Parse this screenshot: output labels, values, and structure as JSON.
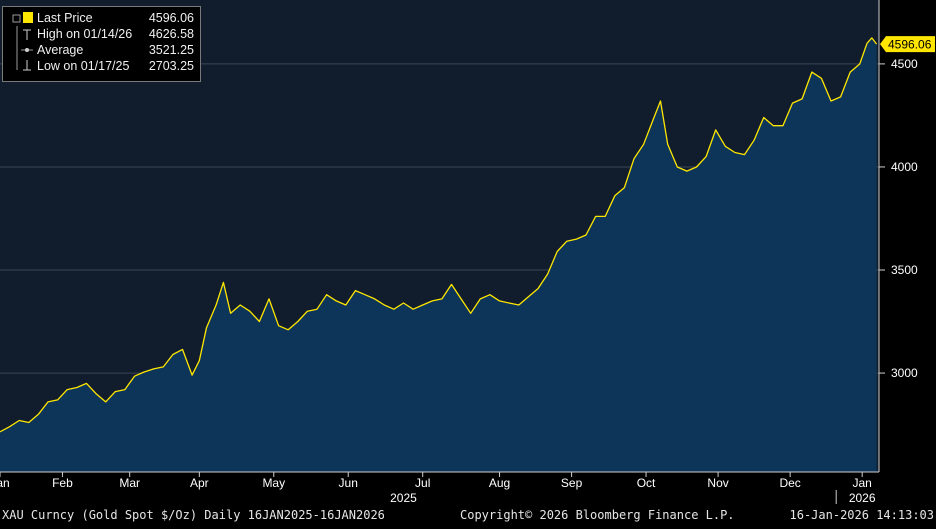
{
  "legend": {
    "items": [
      {
        "label": "Last Price",
        "value": "4596.06",
        "marker": "yellow-square",
        "color": "#ffe600"
      },
      {
        "label": "High on 01/14/26",
        "value": "4626.58",
        "marker": "high-marker"
      },
      {
        "label": "Average",
        "value": "3521.25",
        "marker": "average-marker"
      },
      {
        "label": "Low on 01/17/25",
        "value": "2703.25",
        "marker": "low-marker"
      }
    ]
  },
  "price_tag": "4596.06",
  "footer": {
    "left": "XAU Curncy (Gold Spot  $/Oz) Daily 16JAN2025-16JAN2026",
    "center": "Copyright© 2026 Bloomberg Finance L.P.",
    "right": "16-Jan-2026 14:13:03"
  },
  "colors": {
    "line": "#ffe600",
    "fill": "#0c3559",
    "plot_bg": "#111d2d",
    "grid": "#3a4656",
    "tag": "#ffe600"
  },
  "chart_data": {
    "type": "area",
    "series": [
      {
        "name": "Last Price",
        "x": [
          "2025-01-16",
          "2025-01-20",
          "2025-01-24",
          "2025-01-28",
          "2025-02-01",
          "2025-02-05",
          "2025-02-09",
          "2025-02-13",
          "2025-02-17",
          "2025-02-21",
          "2025-02-25",
          "2025-03-01",
          "2025-03-05",
          "2025-03-09",
          "2025-03-13",
          "2025-03-17",
          "2025-03-21",
          "2025-03-25",
          "2025-03-29",
          "2025-04-02",
          "2025-04-06",
          "2025-04-09",
          "2025-04-12",
          "2025-04-16",
          "2025-04-19",
          "2025-04-22",
          "2025-04-26",
          "2025-04-30",
          "2025-05-04",
          "2025-05-08",
          "2025-05-12",
          "2025-05-16",
          "2025-05-20",
          "2025-05-24",
          "2025-05-28",
          "2025-06-01",
          "2025-06-05",
          "2025-06-09",
          "2025-06-13",
          "2025-06-17",
          "2025-06-21",
          "2025-06-25",
          "2025-06-29",
          "2025-07-03",
          "2025-07-07",
          "2025-07-11",
          "2025-07-15",
          "2025-07-19",
          "2025-07-23",
          "2025-07-27",
          "2025-07-31",
          "2025-08-04",
          "2025-08-08",
          "2025-08-12",
          "2025-08-16",
          "2025-08-20",
          "2025-08-24",
          "2025-08-28",
          "2025-09-01",
          "2025-09-05",
          "2025-09-09",
          "2025-09-13",
          "2025-09-17",
          "2025-09-21",
          "2025-09-25",
          "2025-09-29",
          "2025-10-03",
          "2025-10-07",
          "2025-10-11",
          "2025-10-15",
          "2025-10-18",
          "2025-10-21",
          "2025-10-25",
          "2025-10-29",
          "2025-11-02",
          "2025-11-06",
          "2025-11-10",
          "2025-11-14",
          "2025-11-18",
          "2025-11-22",
          "2025-11-26",
          "2025-11-30",
          "2025-12-04",
          "2025-12-08",
          "2025-12-12",
          "2025-12-16",
          "2025-12-20",
          "2025-12-24",
          "2025-12-28",
          "2026-01-01",
          "2026-01-05",
          "2026-01-09",
          "2026-01-12",
          "2026-01-14",
          "2026-01-16"
        ],
        "values": [
          2715,
          2740,
          2770,
          2760,
          2800,
          2860,
          2870,
          2920,
          2930,
          2950,
          2900,
          2860,
          2910,
          2920,
          2985,
          3005,
          3020,
          3030,
          3090,
          3115,
          2990,
          3060,
          3220,
          3330,
          3440,
          3290,
          3330,
          3300,
          3250,
          3360,
          3230,
          3210,
          3250,
          3300,
          3310,
          3380,
          3350,
          3330,
          3400,
          3380,
          3360,
          3330,
          3310,
          3340,
          3310,
          3330,
          3350,
          3360,
          3430,
          3360,
          3290,
          3360,
          3380,
          3350,
          3340,
          3330,
          3370,
          3410,
          3480,
          3590,
          3640,
          3650,
          3670,
          3760,
          3760,
          3860,
          3900,
          4040,
          4110,
          4230,
          4320,
          4110,
          4000,
          3980,
          4000,
          4050,
          4180,
          4100,
          4070,
          4060,
          4130,
          4240,
          4200,
          4200,
          4310,
          4330,
          4460,
          4430,
          4320,
          4340,
          4460,
          4500,
          4600,
          4626,
          4596
        ]
      }
    ],
    "x_ticks": [
      "Jan",
      "Feb",
      "Mar",
      "Apr",
      "May",
      "Jun",
      "Jul",
      "Aug",
      "Sep",
      "Oct",
      "Nov",
      "Dec",
      "Jan"
    ],
    "x_tick_dates": [
      "2025-01-16",
      "2025-02-11",
      "2025-03-11",
      "2025-04-09",
      "2025-05-10",
      "2025-06-10",
      "2025-07-11",
      "2025-08-12",
      "2025-09-11",
      "2025-10-12",
      "2025-11-11",
      "2025-12-11",
      "2026-01-10"
    ],
    "year_labels": [
      {
        "label": "2025",
        "date": "2025-07-03"
      },
      {
        "label": "2026",
        "date": "2026-01-10"
      }
    ],
    "y_ticks": [
      3000,
      3500,
      4000,
      4500
    ],
    "xlim": [
      "2025-01-16",
      "2026-01-17"
    ],
    "ylim": [
      2520,
      4810
    ],
    "grid": true,
    "legend_position": "top-left"
  }
}
